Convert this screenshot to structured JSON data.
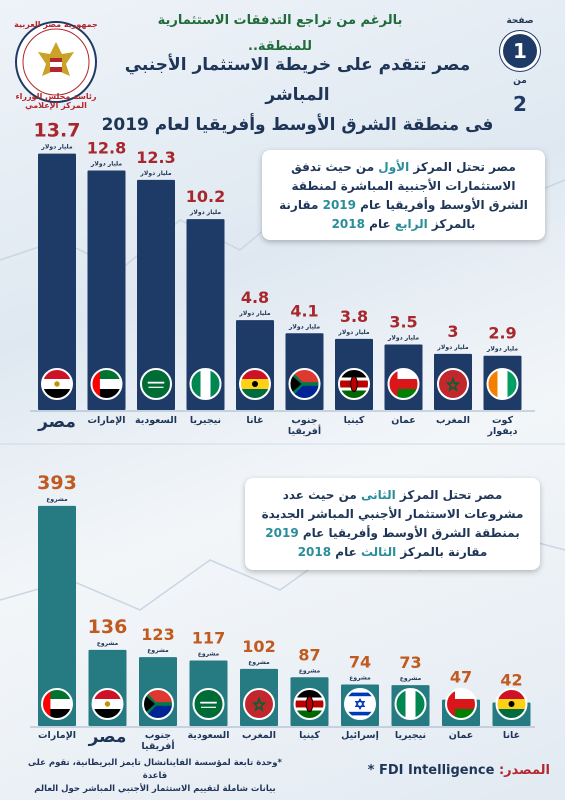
{
  "header": {
    "subtitle": "بالرغم من تراجع التدفقات الاستثمارية للمنطقة..",
    "title_line1": "مصر تتقدم على خريطة الاستثمار الأجنبي المباشر",
    "title_line2": "فى منطقة الشرق الأوسط وأفريقيا لعام 2019",
    "page_label": "صفحة",
    "page_number": "1",
    "of_label": "من",
    "page_total": "2"
  },
  "logo": {
    "line1": "جمهورية مصر العربية",
    "line2": "رئاسة مجلس الوزراء",
    "line3": "المركز الإعلامي"
  },
  "callout1": {
    "part1": "مصر تحتل المركز ",
    "hl1": "الأول",
    "part2": " من حيث تدفق الاستثمارات الأجنبية المباشرة لمنطقة الشرق الأوسط وأفريقيا عام ",
    "year1": "2019",
    "part3": " مقارنة بالمركز ",
    "hl2": "الرابع",
    "part4": " عام ",
    "year2": "2018"
  },
  "callout2": {
    "part1": "مصر تحتل المركز ",
    "hl1": "الثانى",
    "part2": " من حيث عدد مشروعات الاستثمار الأجنبي المباشر الجديدة بمنطقة الشرق الأوسط وأفريقيا عام ",
    "year1": "2019",
    "part3": " مقارنة بالمركز ",
    "hl2": "الثالث",
    "part4": " عام ",
    "year2": "2018"
  },
  "chart_data": [
    {
      "type": "bar",
      "unit_label": "مليار دولار",
      "categories": [
        "مصر",
        "الإمارات",
        "السعودية",
        "نيجيريا",
        "غانا",
        "جنوب أفريقيا",
        "كينيا",
        "عمان",
        "المغرب",
        "كوت ديفوار"
      ],
      "values": [
        13.7,
        12.8,
        12.3,
        10.2,
        4.8,
        4.1,
        3.8,
        3.5,
        3,
        2.9
      ],
      "flags": [
        "egypt",
        "uae",
        "saudi",
        "nigeria",
        "ghana",
        "south-africa",
        "kenya",
        "oman",
        "morocco",
        "ivory-coast"
      ],
      "ylim": [
        0,
        14
      ],
      "bar_color": "#1e3a66",
      "value_color": "#a8272d"
    },
    {
      "type": "bar",
      "unit_label": "مشروع",
      "categories": [
        "الإمارات",
        "مصر",
        "جنوب أفريقيا",
        "السعودية",
        "المغرب",
        "كينيا",
        "إسرائيل",
        "نيجيريا",
        "عمان",
        "غانا"
      ],
      "values": [
        393,
        136,
        123,
        117,
        102,
        87,
        74,
        73,
        47,
        42
      ],
      "flags": [
        "uae",
        "egypt",
        "south-africa",
        "saudi",
        "morocco",
        "kenya",
        "israel",
        "nigeria",
        "oman",
        "ghana"
      ],
      "ylim": [
        0,
        400
      ],
      "bar_color": "#267a82",
      "value_color": "#c05a1e"
    }
  ],
  "source": {
    "label": "المصدر:",
    "value": "FDI Intelligence *"
  },
  "footnote": {
    "line1": "*وحدة تابعة لمؤسسة الفاينانشال تايمز البريطانية، تقوم على قاعدة",
    "line2": "بيانات شاملة لتقييم الاستثمار الأجنبي المباشر حول العالم"
  },
  "colors": {
    "navy": "#1e3a66",
    "teal": "#267a82",
    "red": "#a8272d",
    "orange": "#c05a1e"
  }
}
